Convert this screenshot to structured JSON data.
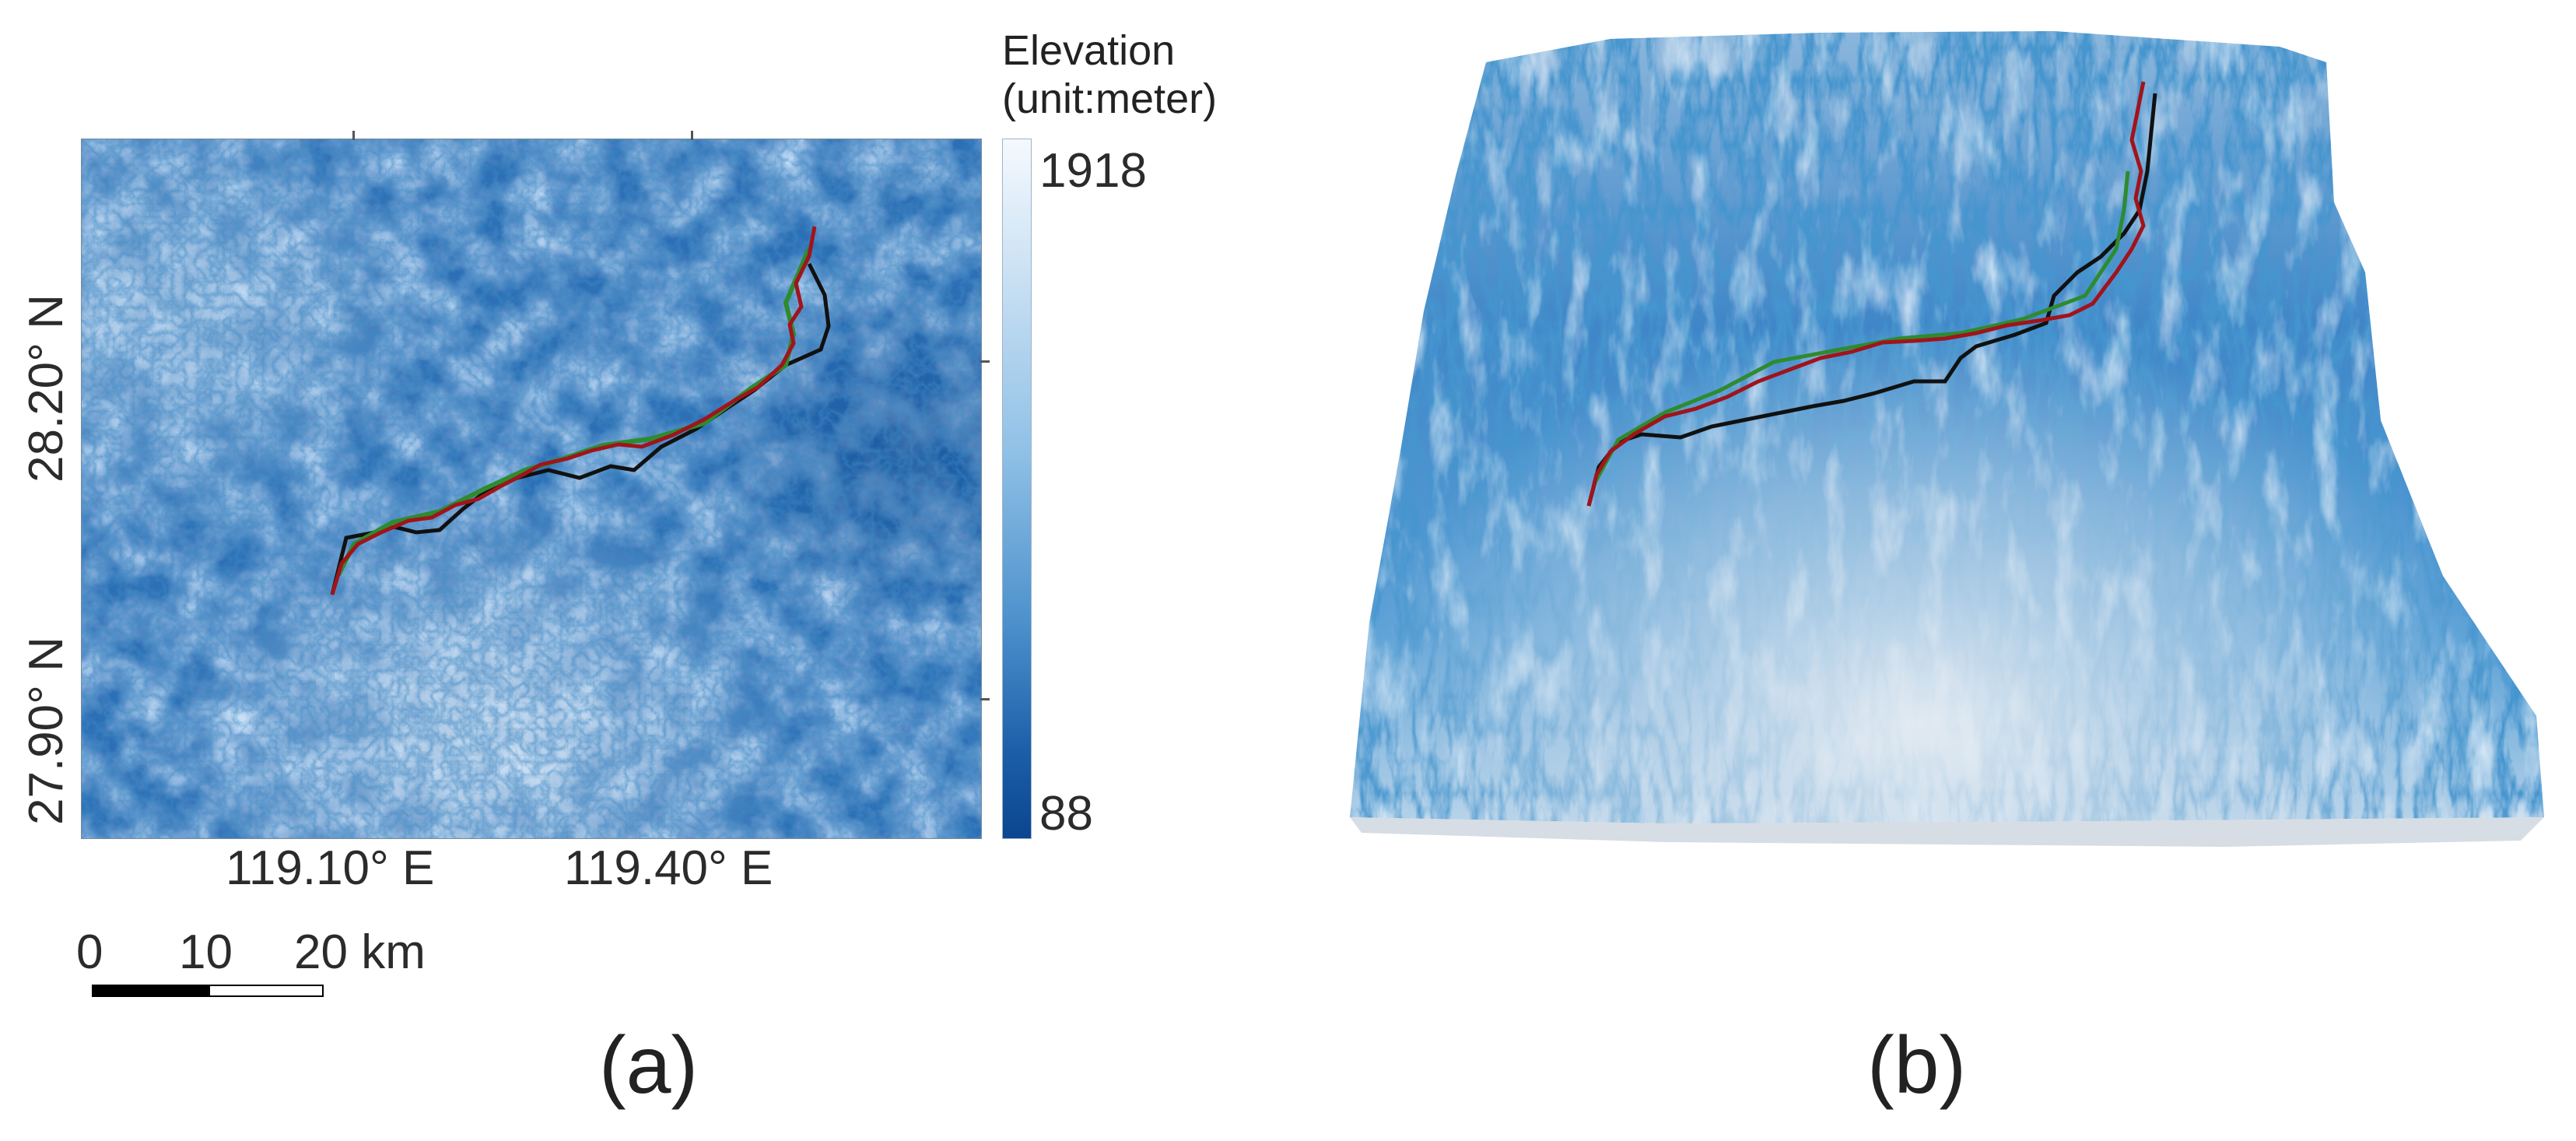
{
  "panel_a": {
    "label": "(a)",
    "longitude_labels": [
      "119.10° E",
      "119.40° E"
    ],
    "latitude_labels": [
      "28.20° N",
      "27.90° N"
    ],
    "colorbar": {
      "title_line1": "Elevation",
      "title_line2": "(unit:meter)",
      "max": "1918",
      "min": "88",
      "color_high": "#f5f9fe",
      "color_low": "#0c4590"
    },
    "scale_bar": {
      "t0": "0",
      "t1": "10",
      "t2": "20 km"
    }
  },
  "panel_b": {
    "label": "(b)"
  },
  "route_colors": {
    "black": "#111111",
    "red": "#a0141b",
    "green": "#2e8b2e"
  }
}
